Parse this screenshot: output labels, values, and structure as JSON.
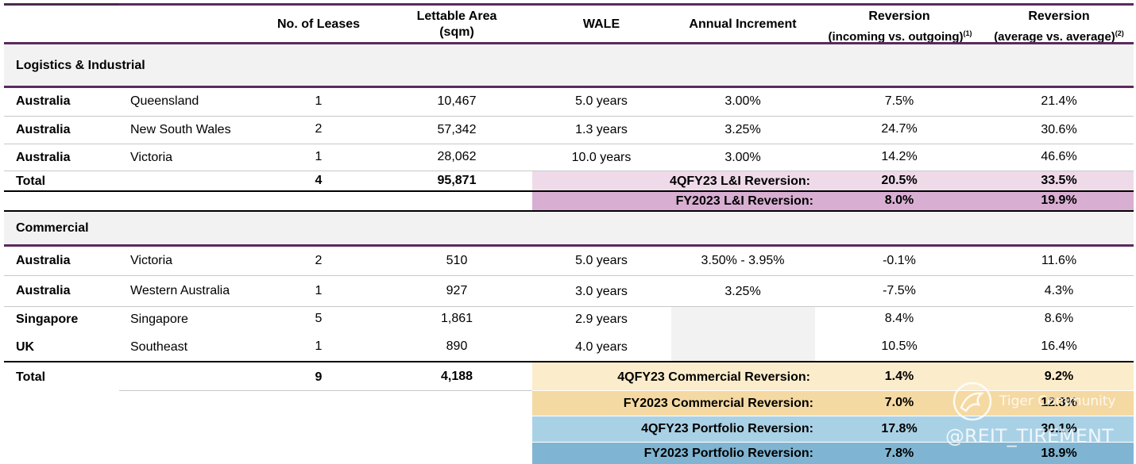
{
  "headers": {
    "leases": "No. of Leases",
    "area_line1": "Lettable Area",
    "area_line2": "(sqm)",
    "wale": "WALE",
    "increment": "Annual Increment",
    "rev1_line1": "Reversion",
    "rev1_line2": "(incoming vs. outgoing)",
    "rev1_sup": "(1)",
    "rev2_line1": "Reversion",
    "rev2_line2": "(average vs. average)",
    "rev2_sup": "(2)"
  },
  "li": {
    "section_title": "Logistics & Industrial",
    "rows": [
      {
        "country": "Australia",
        "region": "Queensland",
        "leases": "1",
        "area": "10,467",
        "wale": "5.0 years",
        "increment": "3.00%",
        "rev1": "7.5%",
        "rev2": "21.4%"
      },
      {
        "country": "Australia",
        "region": "New South Wales",
        "leases": "2",
        "area": "57,342",
        "wale": "1.3 years",
        "increment": "3.25%",
        "rev1": "24.7%",
        "rev2": "30.6%"
      },
      {
        "country": "Australia",
        "region": "Victoria",
        "leases": "1",
        "area": "28,062",
        "wale": "10.0 years",
        "increment": "3.00%",
        "rev1": "14.2%",
        "rev2": "46.6%"
      }
    ],
    "total": {
      "label": "Total",
      "leases": "4",
      "area": "95,871"
    },
    "summary": [
      {
        "label": "4QFY23 L&I Reversion:",
        "rev1": "20.5%",
        "rev2": "33.5%"
      },
      {
        "label": "FY2023 L&I Reversion:",
        "rev1": "8.0%",
        "rev2": "19.9%"
      }
    ]
  },
  "commercial": {
    "section_title": "Commercial",
    "rows": [
      {
        "country": "Australia",
        "region": "Victoria",
        "leases": "2",
        "area": "510",
        "wale": "5.0 years",
        "increment": "3.50% - 3.95%",
        "rev1": "-0.1%",
        "rev2": "11.6%"
      },
      {
        "country": "Australia",
        "region": "Western Australia",
        "leases": "1",
        "area": "927",
        "wale": "3.0 years",
        "increment": "3.25%",
        "rev1": "-7.5%",
        "rev2": "4.3%"
      },
      {
        "country": "Singapore",
        "region": "Singapore",
        "leases": "5",
        "area": "1,861",
        "wale": "2.9 years",
        "increment": "",
        "rev1": "8.4%",
        "rev2": "8.6%"
      },
      {
        "country": "UK",
        "region": "Southeast",
        "leases": "1",
        "area": "890",
        "wale": "4.0 years",
        "increment": "",
        "rev1": "10.5%",
        "rev2": "16.4%"
      }
    ],
    "total": {
      "label": "Total",
      "leases": "9",
      "area": "4,188"
    },
    "summary": [
      {
        "label": "4QFY23 Commercial Reversion:",
        "rev1": "1.4%",
        "rev2": "9.2%"
      },
      {
        "label": "FY2023 Commercial Reversion:",
        "rev1": "7.0%",
        "rev2": "12.3%"
      }
    ]
  },
  "portfolio": {
    "summary": [
      {
        "label": "4QFY23 Portfolio Reversion:",
        "rev1": "17.8%",
        "rev2": "30.1%"
      },
      {
        "label": "FY2023 Portfolio Reversion:",
        "rev1": "7.8%",
        "rev2": "18.9%"
      }
    ]
  },
  "watermark": {
    "community": "Tiger Community",
    "handle": "@REIT_TIREMENT"
  },
  "colors": {
    "purple": "#5b2a5e",
    "section_bg": "#f2f2f2",
    "li_4q": "#efdaea",
    "li_fy": "#d8afd2",
    "com_4q": "#fbeccc",
    "com_fy": "#f5d9a2",
    "port_4q": "#a9d1e6",
    "port_fy": "#7fb5d3"
  }
}
